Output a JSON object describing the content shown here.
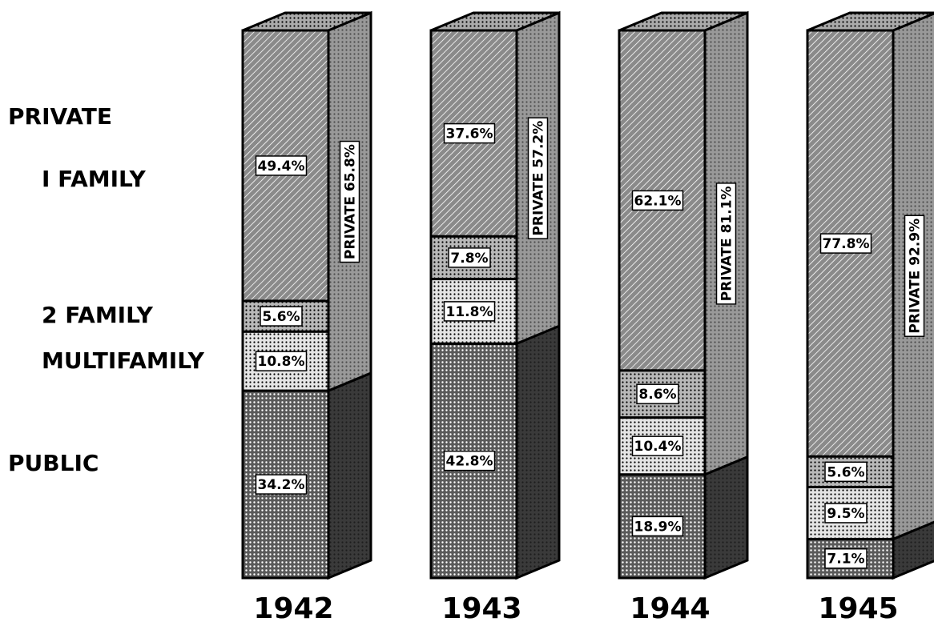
{
  "chart_data": {
    "type": "bar",
    "stacked": true,
    "categories": [
      "1942",
      "1943",
      "1944",
      "1945"
    ],
    "group_label": "PRIVATE",
    "series": [
      {
        "name": "I FAMILY",
        "color": "#8a8a8a",
        "values": [
          49.4,
          37.6,
          62.1,
          77.8
        ],
        "value_labels": [
          "49.4%",
          "37.6%",
          "62.1%",
          "77.8%"
        ]
      },
      {
        "name": "2 FAMILY",
        "color": "#b8b8b8",
        "values": [
          5.6,
          7.8,
          8.6,
          5.6
        ],
        "value_labels": [
          "5.6%",
          "7.8%",
          "8.6%",
          "5.6%"
        ]
      },
      {
        "name": "MULTIFAMILY",
        "color": "#e4e4e4",
        "values": [
          10.8,
          11.8,
          10.4,
          9.5
        ],
        "value_labels": [
          "10.8%",
          "11.8%",
          "10.4%",
          "9.5%"
        ]
      },
      {
        "name": "PUBLIC",
        "color": "#5a5a5a",
        "values": [
          34.2,
          42.8,
          18.9,
          7.1
        ],
        "value_labels": [
          "34.2%",
          "42.8%",
          "18.9%",
          "7.1%"
        ]
      }
    ],
    "private_totals": {
      "values": [
        65.8,
        57.2,
        81.1,
        92.9
      ],
      "value_labels": [
        "PRIVATE 65.8%",
        "PRIVATE 57.2%",
        "PRIVATE 81.1%",
        "PRIVATE 92.9%"
      ]
    }
  }
}
